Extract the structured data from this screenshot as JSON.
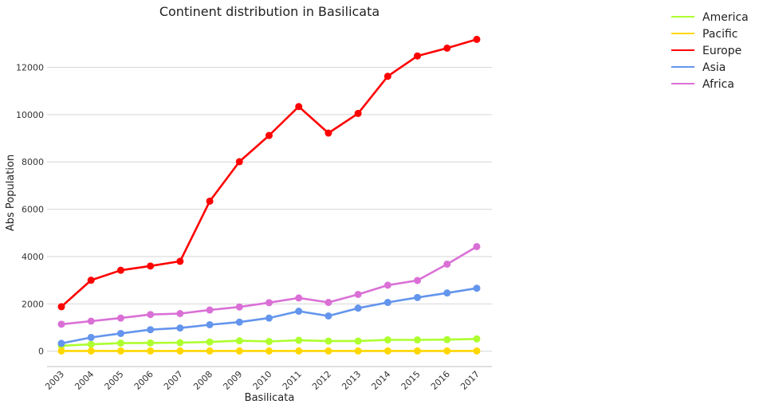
{
  "chart_data": {
    "type": "line",
    "title": "Continent distribution in Basilicata",
    "xlabel": "Basilicata",
    "ylabel": "Abs Population",
    "categories": [
      "2003",
      "2004",
      "2005",
      "2006",
      "2007",
      "2008",
      "2009",
      "2010",
      "2011",
      "2012",
      "2013",
      "2014",
      "2015",
      "2016",
      "2017"
    ],
    "y_ticks": [
      "0",
      "2000",
      "4000",
      "6000",
      "8000",
      "10000",
      "12000"
    ],
    "ylim": [
      -650,
      13700
    ],
    "grid": "horizontal",
    "legend_position": "top-right outside",
    "series": [
      {
        "name": "America",
        "color": "#adff2f",
        "values": [
          230,
          290,
          340,
          350,
          360,
          390,
          440,
          410,
          460,
          430,
          430,
          480,
          480,
          490,
          520
        ]
      },
      {
        "name": "Pacific",
        "color": "#ffd700",
        "values": [
          10,
          10,
          10,
          10,
          10,
          10,
          10,
          10,
          10,
          10,
          10,
          10,
          10,
          10,
          10
        ]
      },
      {
        "name": "Europe",
        "color": "#ff0000",
        "values": [
          1880,
          3000,
          3420,
          3600,
          3800,
          6340,
          8010,
          9120,
          10340,
          9220,
          10050,
          11620,
          12480,
          12810,
          13180
        ]
      },
      {
        "name": "Asia",
        "color": "#6495ed",
        "values": [
          330,
          580,
          750,
          910,
          980,
          1120,
          1230,
          1400,
          1690,
          1490,
          1820,
          2060,
          2270,
          2460,
          2660
        ]
      },
      {
        "name": "Africa",
        "color": "#da70d6",
        "values": [
          1140,
          1270,
          1400,
          1550,
          1590,
          1740,
          1870,
          2050,
          2250,
          2060,
          2400,
          2790,
          2990,
          3680,
          4420
        ]
      }
    ]
  }
}
